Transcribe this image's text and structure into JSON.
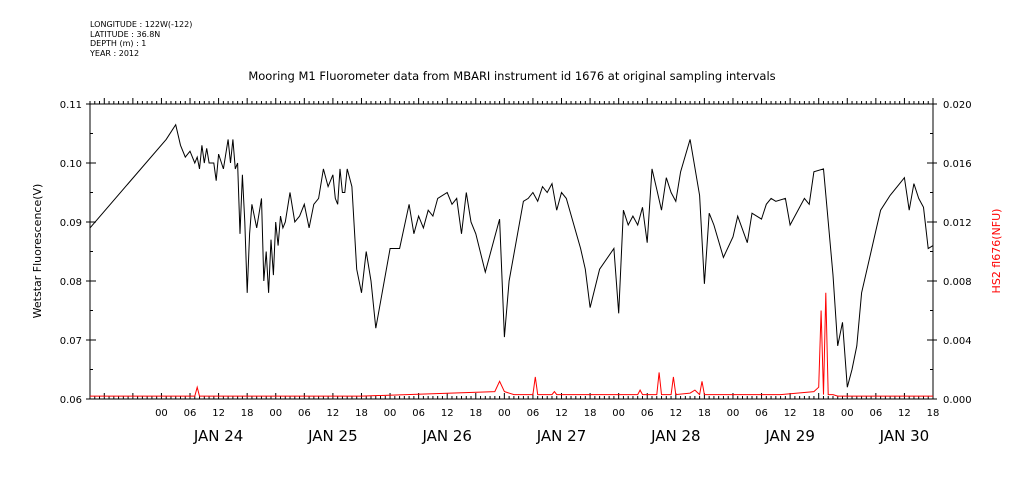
{
  "meta": {
    "longitude": "LONGITUDE : 122W(-122)",
    "latitude": "LATITUDE : 36.8N",
    "depth": "DEPTH (m) : 1",
    "year": "YEAR : 2012"
  },
  "colors": {
    "primary": "#000000",
    "secondary": "#ff0000"
  },
  "chart_data": {
    "type": "line",
    "title": "Mooring M1 Fluorometer data from MBARI instrument id 1676 at original sampling intervals",
    "ylabel": "Wetstar Fluorescence(V)",
    "y2label": "HS2 fl676(NFU)",
    "ylim": [
      0.06,
      0.11
    ],
    "y2lim": [
      0.0,
      0.02
    ],
    "yticks": [
      "0.06",
      "0.07",
      "0.08",
      "0.09",
      "0.10",
      "0.11"
    ],
    "y2ticks": [
      "0.000",
      "0.004",
      "0.008",
      "0.012",
      "0.016",
      "0.020"
    ],
    "xlim": [
      "2012-01-23 09:00",
      "2012-01-30 18:00"
    ],
    "hour_labels": [
      "00",
      "06",
      "12",
      "18",
      "00",
      "06",
      "12",
      "18",
      "00",
      "06",
      "12",
      "18",
      "00",
      "06",
      "12",
      "18",
      "00",
      "06",
      "12",
      "18",
      "00",
      "06",
      "12",
      "18",
      "00",
      "06",
      "12",
      "18"
    ],
    "day_labels": [
      "JAN 24",
      "JAN 25",
      "JAN 26",
      "JAN 27",
      "JAN 28",
      "JAN 29",
      "JAN 30"
    ],
    "grid": false,
    "series": [
      {
        "axis": "left",
        "color": "#000000",
        "x": [
          "2012-01-23 09:00",
          "2012-01-24 01:00",
          "2012-01-24 03:00",
          "2012-01-24 04:00",
          "2012-01-24 05:00",
          "2012-01-24 06:00",
          "2012-01-24 07:00",
          "2012-01-24 07:30",
          "2012-01-24 08:00",
          "2012-01-24 08:30",
          "2012-01-24 09:00",
          "2012-01-24 09:30",
          "2012-01-24 10:00",
          "2012-01-24 11:00",
          "2012-01-24 11:30",
          "2012-01-24 12:00",
          "2012-01-24 13:00",
          "2012-01-24 14:00",
          "2012-01-24 14:30",
          "2012-01-24 15:00",
          "2012-01-24 15:30",
          "2012-01-24 16:00",
          "2012-01-24 16:30",
          "2012-01-24 17:00",
          "2012-01-24 17:30",
          "2012-01-24 18:00",
          "2012-01-24 18:30",
          "2012-01-24 19:00",
          "2012-01-24 20:00",
          "2012-01-24 21:00",
          "2012-01-24 21:30",
          "2012-01-24 22:00",
          "2012-01-24 22:30",
          "2012-01-24 23:00",
          "2012-01-24 23:30",
          "2012-01-25 00:00",
          "2012-01-25 00:30",
          "2012-01-25 01:00",
          "2012-01-25 01:30",
          "2012-01-25 02:00",
          "2012-01-25 03:00",
          "2012-01-25 04:00",
          "2012-01-25 05:00",
          "2012-01-25 06:00",
          "2012-01-25 07:00",
          "2012-01-25 08:00",
          "2012-01-25 09:00",
          "2012-01-25 10:00",
          "2012-01-25 11:00",
          "2012-01-25 12:00",
          "2012-01-25 12:30",
          "2012-01-25 13:00",
          "2012-01-25 13:30",
          "2012-01-25 14:00",
          "2012-01-25 14:30",
          "2012-01-25 15:00",
          "2012-01-25 16:00",
          "2012-01-25 17:00",
          "2012-01-25 18:00",
          "2012-01-25 19:00",
          "2012-01-25 20:00",
          "2012-01-25 21:00",
          "2012-01-26 00:00",
          "2012-01-26 02:00",
          "2012-01-26 04:00",
          "2012-01-26 05:00",
          "2012-01-26 06:00",
          "2012-01-26 07:00",
          "2012-01-26 08:00",
          "2012-01-26 09:00",
          "2012-01-26 10:00",
          "2012-01-26 12:00",
          "2012-01-26 13:00",
          "2012-01-26 14:00",
          "2012-01-26 15:00",
          "2012-01-26 16:00",
          "2012-01-26 17:00",
          "2012-01-26 18:00",
          "2012-01-26 20:00",
          "2012-01-26 22:00",
          "2012-01-26 23:00",
          "2012-01-27 00:00",
          "2012-01-27 01:00",
          "2012-01-27 04:00",
          "2012-01-27 05:00",
          "2012-01-27 06:00",
          "2012-01-27 07:00",
          "2012-01-27 08:00",
          "2012-01-27 09:00",
          "2012-01-27 10:00",
          "2012-01-27 11:00",
          "2012-01-27 12:00",
          "2012-01-27 13:00",
          "2012-01-27 16:00",
          "2012-01-27 17:00",
          "2012-01-27 18:00",
          "2012-01-27 20:00",
          "2012-01-27 23:00",
          "2012-01-28 00:00",
          "2012-01-28 01:00",
          "2012-01-28 02:00",
          "2012-01-28 03:00",
          "2012-01-28 04:00",
          "2012-01-28 05:00",
          "2012-01-28 06:00",
          "2012-01-28 07:00",
          "2012-01-28 08:00",
          "2012-01-28 09:00",
          "2012-01-28 10:00",
          "2012-01-28 11:00",
          "2012-01-28 12:00",
          "2012-01-28 13:00",
          "2012-01-28 15:00",
          "2012-01-28 17:00",
          "2012-01-28 18:00",
          "2012-01-28 19:00",
          "2012-01-28 20:00",
          "2012-01-28 22:00",
          "2012-01-29 00:00",
          "2012-01-29 01:00",
          "2012-01-29 03:00",
          "2012-01-29 04:00",
          "2012-01-29 06:00",
          "2012-01-29 07:00",
          "2012-01-29 08:00",
          "2012-01-29 09:00",
          "2012-01-29 11:00",
          "2012-01-29 12:00",
          "2012-01-29 15:00",
          "2012-01-29 16:00",
          "2012-01-29 17:00",
          "2012-01-29 19:00",
          "2012-01-29 21:00",
          "2012-01-29 22:00",
          "2012-01-29 23:00",
          "2012-01-30 00:00",
          "2012-01-30 01:00",
          "2012-01-30 02:00",
          "2012-01-30 03:00",
          "2012-01-30 05:00",
          "2012-01-30 06:00",
          "2012-01-30 07:00",
          "2012-01-30 09:00",
          "2012-01-30 11:00",
          "2012-01-30 12:00",
          "2012-01-30 13:00",
          "2012-01-30 14:00",
          "2012-01-30 15:00",
          "2012-01-30 16:00",
          "2012-01-30 17:00",
          "2012-01-30 18:00"
        ],
        "y": [
          0.089,
          0.104,
          0.1065,
          0.103,
          0.101,
          0.102,
          0.1,
          0.101,
          0.099,
          0.103,
          0.1,
          0.1025,
          0.1,
          0.1,
          0.097,
          0.1015,
          0.099,
          0.104,
          0.1,
          0.104,
          0.099,
          0.1,
          0.088,
          0.098,
          0.09,
          0.078,
          0.088,
          0.093,
          0.089,
          0.094,
          0.08,
          0.085,
          0.078,
          0.087,
          0.081,
          0.09,
          0.086,
          0.091,
          0.089,
          0.09,
          0.095,
          0.09,
          0.091,
          0.093,
          0.089,
          0.093,
          0.094,
          0.099,
          0.096,
          0.098,
          0.094,
          0.093,
          0.099,
          0.095,
          0.095,
          0.099,
          0.096,
          0.082,
          0.078,
          0.085,
          0.08,
          0.072,
          0.0855,
          0.0855,
          0.093,
          0.088,
          0.091,
          0.089,
          0.092,
          0.091,
          0.094,
          0.095,
          0.093,
          0.094,
          0.088,
          0.095,
          0.09,
          0.088,
          0.0815,
          0.0875,
          0.0905,
          0.0705,
          0.08,
          0.0935,
          0.094,
          0.095,
          0.0935,
          0.096,
          0.095,
          0.0965,
          0.092,
          0.095,
          0.094,
          0.0855,
          0.082,
          0.0755,
          0.082,
          0.0855,
          0.0745,
          0.092,
          0.0895,
          0.091,
          0.0895,
          0.0925,
          0.0865,
          0.099,
          0.0955,
          0.092,
          0.0975,
          0.095,
          0.0935,
          0.0985,
          0.104,
          0.0945,
          0.0795,
          0.0915,
          0.0895,
          0.084,
          0.0875,
          0.091,
          0.0865,
          0.0915,
          0.0905,
          0.093,
          0.094,
          0.0935,
          0.094,
          0.0895,
          0.094,
          0.093,
          0.0985,
          0.099,
          0.081,
          0.069,
          0.073,
          0.062,
          0.065,
          0.069,
          0.078,
          0.085,
          0.0885,
          0.092,
          0.0945,
          0.0965,
          0.0975,
          0.092,
          0.0965,
          0.094,
          0.0925,
          0.0855,
          0.086
        ]
      },
      {
        "axis": "right",
        "color": "#ff0000",
        "x": [
          "2012-01-23 09:00",
          "2012-01-24 07:00",
          "2012-01-24 07:30",
          "2012-01-24 08:00",
          "2012-01-24 12:00",
          "2012-01-25 18:00",
          "2012-01-26 22:00",
          "2012-01-26 23:00",
          "2012-01-27 00:00",
          "2012-01-27 02:00",
          "2012-01-27 06:00",
          "2012-01-27 06:30",
          "2012-01-27 07:00",
          "2012-01-27 10:00",
          "2012-01-27 10:30",
          "2012-01-27 11:00",
          "2012-01-28 00:00",
          "2012-01-28 04:00",
          "2012-01-28 04:30",
          "2012-01-28 05:00",
          "2012-01-28 08:00",
          "2012-01-28 08:30",
          "2012-01-28 09:00",
          "2012-01-28 11:00",
          "2012-01-28 11:30",
          "2012-01-28 12:00",
          "2012-01-28 15:00",
          "2012-01-28 16:00",
          "2012-01-28 17:00",
          "2012-01-28 17:30",
          "2012-01-28 18:00",
          "2012-01-29 10:00",
          "2012-01-29 17:00",
          "2012-01-29 18:00",
          "2012-01-29 18:30",
          "2012-01-29 19:00",
          "2012-01-29 19:30",
          "2012-01-29 20:00",
          "2012-01-29 21:00",
          "2012-01-29 22:00",
          "2012-01-30 18:00"
        ],
        "y": [
          0.0002,
          0.0002,
          0.0008,
          0.0002,
          0.0002,
          0.0002,
          0.0005,
          0.0012,
          0.0005,
          0.0003,
          0.0003,
          0.0015,
          0.0003,
          0.0003,
          0.0005,
          0.0003,
          0.0003,
          0.0003,
          0.0006,
          0.0003,
          0.0003,
          0.0018,
          0.0003,
          0.0003,
          0.0015,
          0.0003,
          0.0004,
          0.0006,
          0.0003,
          0.0012,
          0.0003,
          0.0003,
          0.0005,
          0.0008,
          0.006,
          0.0003,
          0.0072,
          0.0003,
          0.0003,
          0.0002,
          0.0002
        ]
      }
    ]
  }
}
